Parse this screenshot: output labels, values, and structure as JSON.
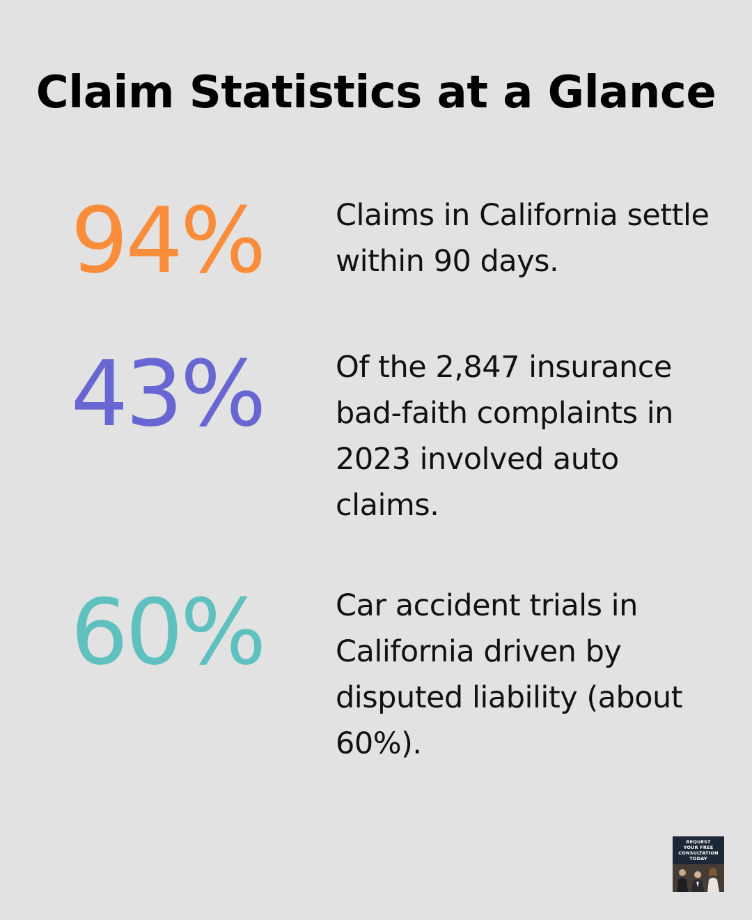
{
  "title": "Claim Statistics at a Glance",
  "colors": {
    "background": "#e1e2e1",
    "stat_1": "#fb8c3a",
    "stat_2": "#6766d2",
    "stat_3": "#5ec1c0"
  },
  "stats": [
    {
      "value": "94%",
      "description": "Claims in California settle within 90 days."
    },
    {
      "value": "43%",
      "description": "Of the 2,847 insurance bad-faith complaints in 2023 involved auto claims."
    },
    {
      "value": "60%",
      "description": "Car accident trials in California driven by disputed liability (about 60%)."
    }
  ],
  "cta": {
    "line1": "REQUEST",
    "line2": "YOUR FREE",
    "line3": "CONSULTATION",
    "line4": "TODAY",
    "image": "attorneys-photo"
  }
}
